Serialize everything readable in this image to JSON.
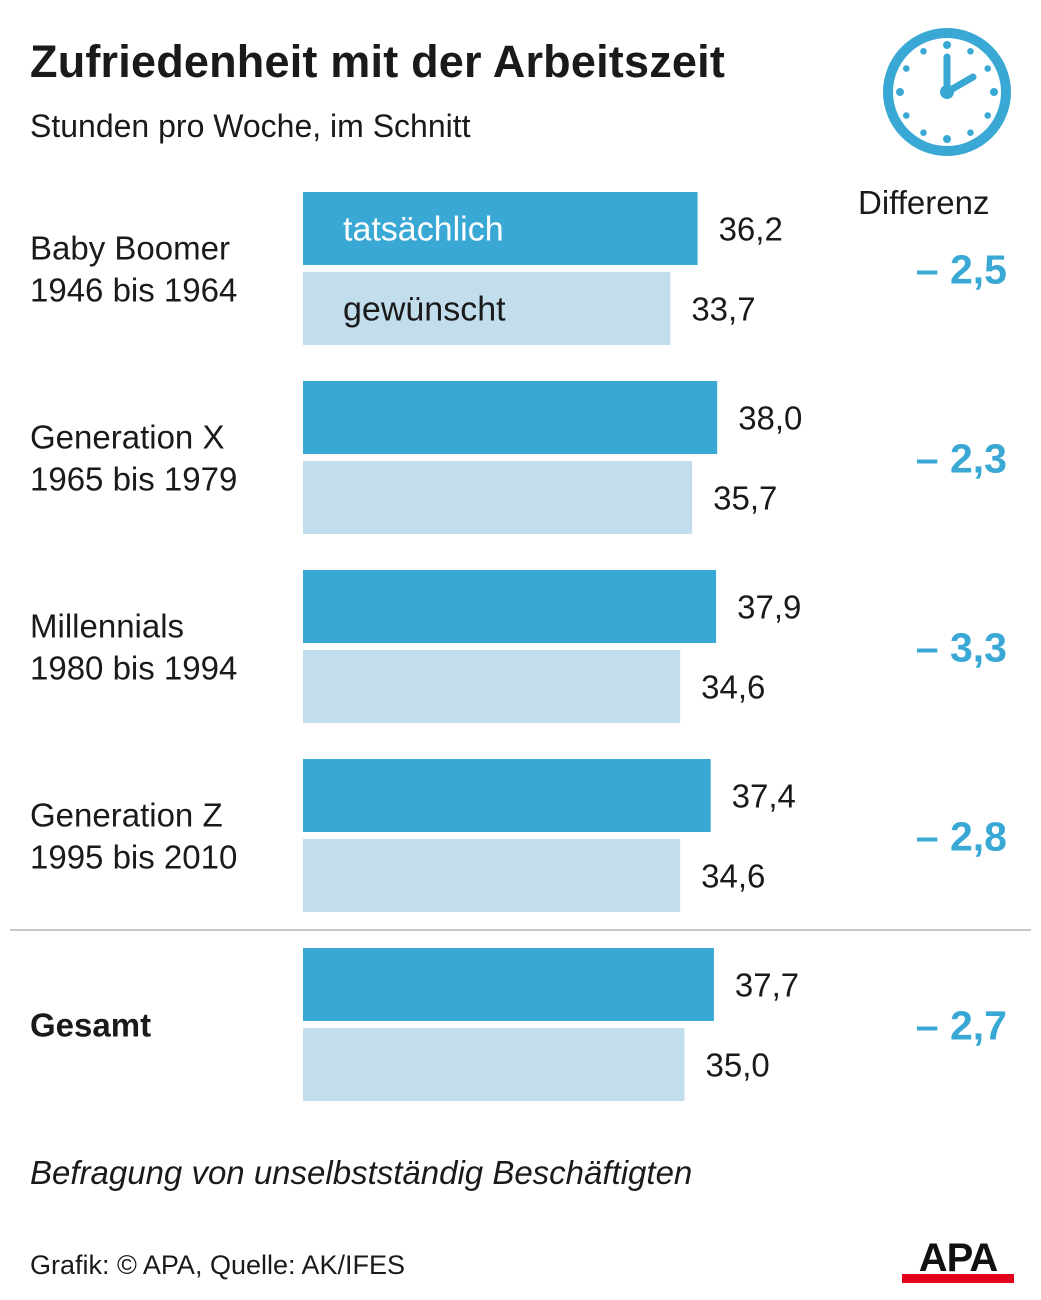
{
  "header": {
    "title": "Zufriedenheit mit der Arbeitszeit",
    "subtitle": "Stunden pro Woche, im Schnitt",
    "icon": "clock-icon",
    "diff_label": "Differenz"
  },
  "chart_data": {
    "type": "bar",
    "orientation": "horizontal",
    "title": "Zufriedenheit mit der Arbeitszeit",
    "subtitle": "Stunden pro Woche, im Schnitt",
    "categories": [
      {
        "name": "Baby Boomer",
        "years": "1946 bis 1964",
        "bold": false
      },
      {
        "name": "Generation X",
        "years": "1965 bis 1979",
        "bold": false
      },
      {
        "name": "Millennials",
        "years": "1980 bis 1994",
        "bold": false
      },
      {
        "name": "Generation Z",
        "years": "1995 bis 2010",
        "bold": false
      },
      {
        "name": "Gesamt",
        "years": "",
        "bold": true
      }
    ],
    "series": [
      {
        "name": "tatsächlich",
        "color": "#3aa8d5",
        "values": [
          36.2,
          38.0,
          37.9,
          37.4,
          37.7
        ],
        "labels": [
          "36,2",
          "38,0",
          "37,9",
          "37,4",
          "37,7"
        ]
      },
      {
        "name": "gewünscht",
        "color": "#c2deed",
        "values": [
          33.7,
          35.7,
          34.6,
          34.6,
          35.0
        ],
        "labels": [
          "33,7",
          "35,7",
          "34,6",
          "34,6",
          "35,0"
        ]
      }
    ],
    "difference": {
      "label": "Differenz",
      "values": [
        -2.5,
        -2.3,
        -3.3,
        -2.8,
        -2.7
      ],
      "labels": [
        "– 2,5",
        "– 2,3",
        "– 3,3",
        "– 2,8",
        "– 2,7"
      ],
      "color": "#3aa8d5"
    }
  },
  "footer": {
    "note": "Befragung von unselbstständig Beschäftigten",
    "source": "Grafik: © APA, Quelle: AK/IFES",
    "logo": {
      "text": "APA",
      "accent": "#e2001a"
    }
  }
}
